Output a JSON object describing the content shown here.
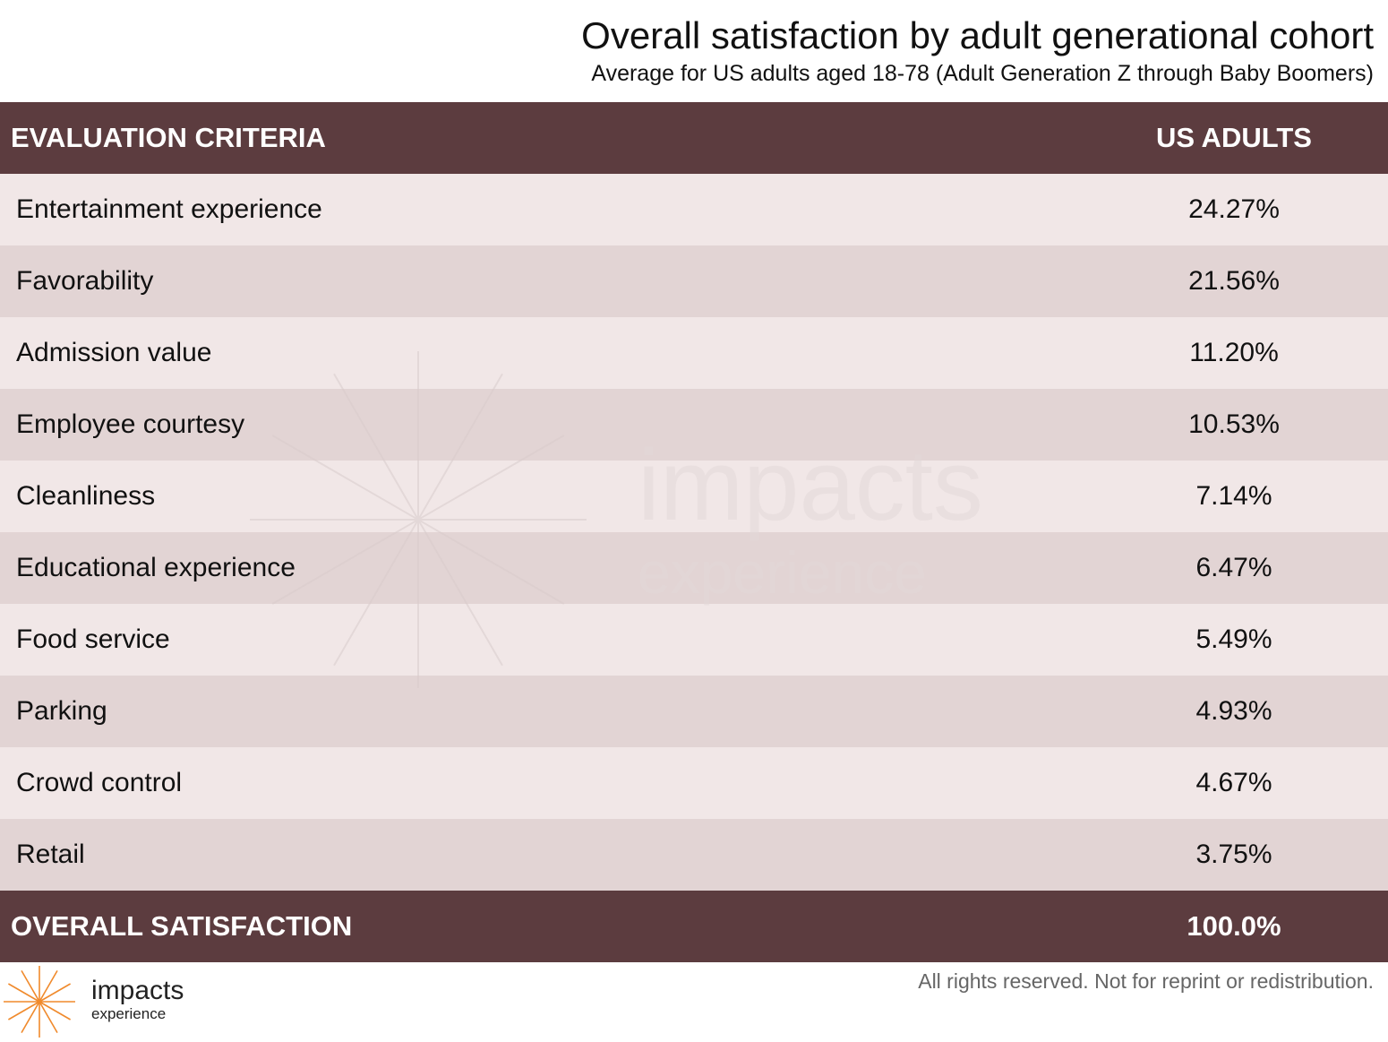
{
  "title": "Overall satisfaction by adult generational cohort",
  "subtitle": "Average for US adults aged 18-78 (Adult Generation Z through Baby Boomers)",
  "colors": {
    "header_bg": "#5c3c3f",
    "row_light": "#f1e7e7",
    "row_dark": "#e2d4d4",
    "brand_orange": "#f08a2c"
  },
  "chart_data": {
    "type": "table",
    "columns": [
      "EVALUATION CRITERIA",
      "US ADULTS"
    ],
    "rows": [
      {
        "label": "Entertainment experience",
        "value": "24.27%"
      },
      {
        "label": "Favorability",
        "value": "21.56%"
      },
      {
        "label": "Admission value",
        "value": "11.20%"
      },
      {
        "label": "Employee courtesy",
        "value": "10.53%"
      },
      {
        "label": "Cleanliness",
        "value": "7.14%"
      },
      {
        "label": "Educational experience",
        "value": "6.47%"
      },
      {
        "label": "Food service",
        "value": "5.49%"
      },
      {
        "label": "Parking",
        "value": "4.93%"
      },
      {
        "label": "Crowd control",
        "value": "4.67%"
      },
      {
        "label": "Retail",
        "value": "3.75%"
      }
    ],
    "total": {
      "label": "OVERALL SATISFACTION",
      "value": "100.0%"
    }
  },
  "watermark": {
    "word": "impacts",
    "sub": "experience"
  },
  "footer": {
    "note": "All rights reserved. Not for reprint or redistribution.",
    "logo_word": "impacts",
    "logo_sub": "experience",
    "logo_icon": "starburst-icon"
  }
}
